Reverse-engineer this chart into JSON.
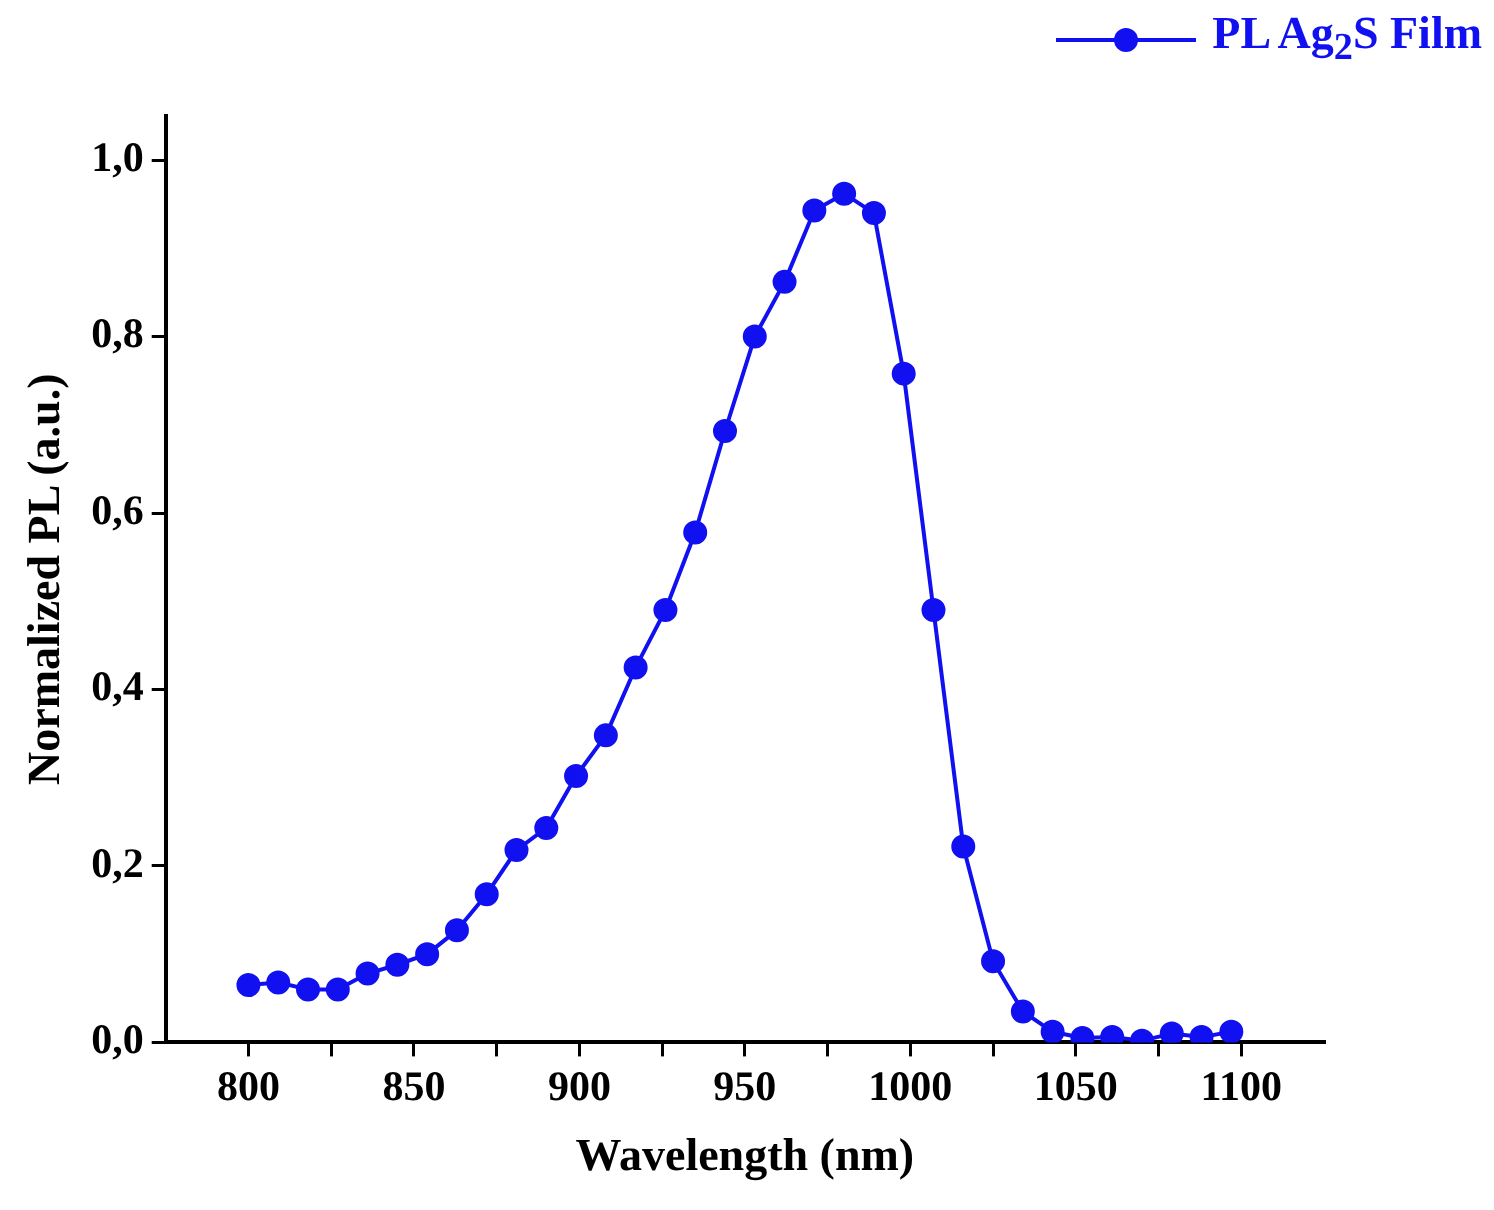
{
  "chart_data": {
    "type": "line",
    "xlabel": "Wavelength (nm)",
    "ylabel": "Normalized PL (a.u.)",
    "x": [
      800,
      809,
      818,
      827,
      836,
      845,
      854,
      863,
      872,
      881,
      890,
      899,
      908,
      917,
      926,
      935,
      944,
      953,
      962,
      971,
      980,
      989,
      998,
      1007,
      1016,
      1025,
      1034,
      1043,
      1052,
      1061,
      1070,
      1079,
      1088,
      1097
    ],
    "series": [
      {
        "name": "PL Ag$_{2}$S Film",
        "color": "#1010f0",
        "values": [
          0.065,
          0.068,
          0.06,
          0.06,
          0.078,
          0.088,
          0.1,
          0.127,
          0.168,
          0.218,
          0.243,
          0.302,
          0.348,
          0.425,
          0.49,
          0.578,
          0.693,
          0.8,
          0.862,
          0.943,
          0.962,
          0.94,
          0.758,
          0.49,
          0.222,
          0.092,
          0.035,
          0.012,
          0.005,
          0.006,
          0.002,
          0.01,
          0.006,
          0.012
        ]
      }
    ],
    "xlim": [
      775,
      1125
    ],
    "xticks": [
      800,
      {
        "value": 825,
        "label": null
      },
      850,
      {
        "value": 875,
        "label": null
      },
      900,
      {
        "value": 925,
        "label": null
      },
      950,
      {
        "value": 975,
        "label": null
      },
      1000,
      {
        "value": 1025,
        "label": null
      },
      1050,
      {
        "value": 1075,
        "label": null
      },
      1100
    ],
    "ylim": [
      0,
      1.05
    ],
    "yticks": [
      {
        "value": 0,
        "label": "0,0"
      },
      {
        "value": 0.2,
        "label": "0,2"
      },
      {
        "value": 0.4,
        "label": "0,4"
      },
      {
        "value": 0.6,
        "label": "0,6"
      },
      {
        "value": 0.8,
        "label": "0,8"
      },
      {
        "value": 1,
        "label": "1,0"
      }
    ],
    "grid": false,
    "legend": "top right",
    "marker": "circle",
    "line_style": "solid"
  }
}
